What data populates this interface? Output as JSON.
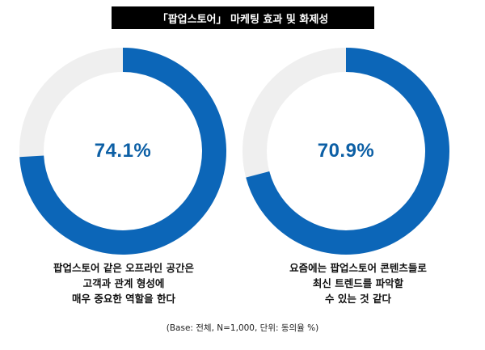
{
  "header": {
    "title": "「팝업스토어」 마케팅 효과 및 화제성"
  },
  "chart_data": [
    {
      "type": "pie",
      "donut": true,
      "value_pct": 74.1,
      "value_label": "74.1%",
      "colors": {
        "value": "#0c66b8",
        "remainder": "#efefef"
      },
      "statement_lines": [
        "팝업스토어 같은 오프라인 공간은",
        "고객과 관계 형성에",
        "매우 중요한 역할을 한다"
      ]
    },
    {
      "type": "pie",
      "donut": true,
      "value_pct": 70.9,
      "value_label": "70.9%",
      "colors": {
        "value": "#0c66b8",
        "remainder": "#efefef"
      },
      "statement_lines": [
        "요즘에는 팝업스토어 콘텐츠들로",
        "최신 트렌드를 파악할",
        "수 있는 것 같다"
      ]
    }
  ],
  "footnote": "(Base: 전체, N=1,000, 단위: 동의율 %)"
}
